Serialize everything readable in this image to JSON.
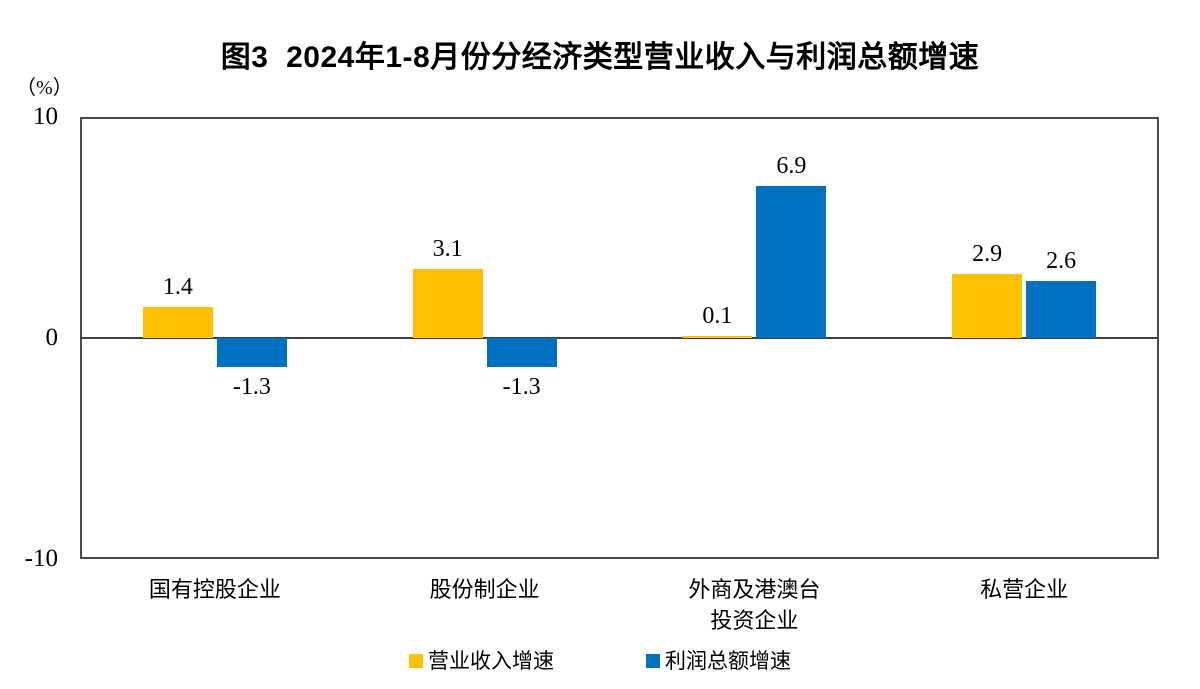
{
  "figure": {
    "unit_label": "（%）"
  },
  "y_axis": {
    "ticks": [
      {
        "label": "10",
        "value": 10
      },
      {
        "label": "0",
        "value": 0
      },
      {
        "label": "-10",
        "value": -10
      }
    ]
  },
  "chart_data": {
    "type": "bar",
    "title": "图3  2024年1-8月份分经济类型营业收入与利润总额增速",
    "unit": "%",
    "categories": [
      "国有控股企业",
      "股份制企业",
      "外商及港澳台\n投资企业",
      "私营企业"
    ],
    "series": [
      {
        "name": "营业收入增速",
        "color": "#FFC000",
        "values": [
          1.4,
          3.1,
          0.1,
          2.9
        ],
        "labels": [
          "1.4",
          "3.1",
          "0.1",
          "2.9"
        ]
      },
      {
        "name": "利润总额增速",
        "color": "#0070C0",
        "values": [
          -1.3,
          -1.3,
          6.9,
          2.6
        ],
        "labels": [
          "-1.3",
          "-1.3",
          "6.9",
          "2.6"
        ]
      }
    ],
    "ylim": [
      -10,
      10
    ],
    "grid": false,
    "axis_color": "#3f3f3f",
    "legend_position": "bottom"
  }
}
